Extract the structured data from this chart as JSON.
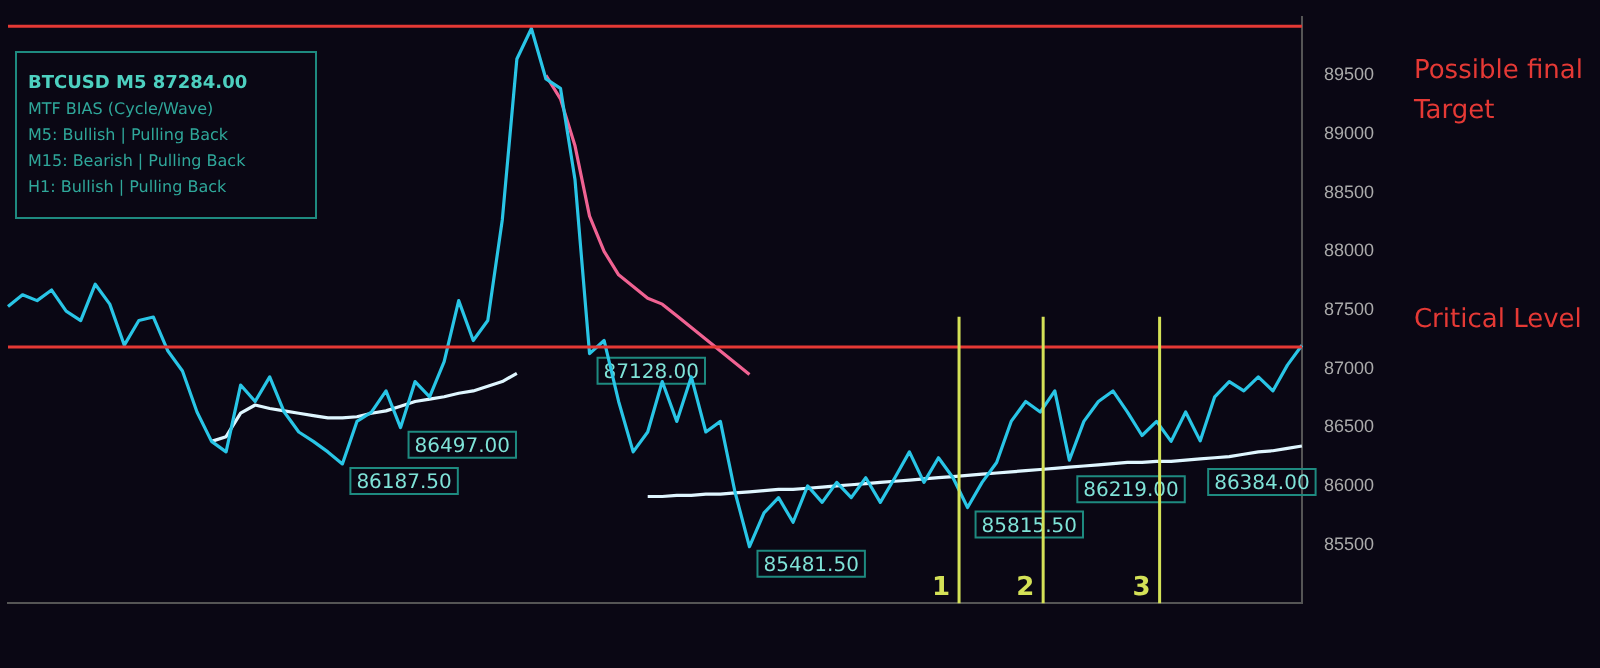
{
  "chart_data": {
    "type": "line",
    "grid": false,
    "legend": false,
    "ylim": [
      85000,
      90000
    ],
    "yticks": [
      85500,
      86000,
      86500,
      87000,
      87500,
      88000,
      88500,
      89000,
      89500
    ],
    "categories": [
      null,
      null,
      null,
      null,
      null,
      null,
      null,
      null,
      null,
      null,
      null,
      null,
      null,
      null,
      null,
      null,
      null,
      null,
      null,
      null,
      null,
      null,
      null,
      null,
      null,
      null,
      null,
      null,
      null,
      null,
      null,
      null,
      null,
      null,
      null,
      null,
      null,
      null,
      null,
      null,
      null,
      null,
      null,
      null,
      null,
      null,
      null,
      null,
      null,
      null,
      null,
      null,
      null,
      null,
      null,
      null,
      null,
      null,
      null,
      null,
      null,
      null,
      null,
      null,
      null,
      null,
      null,
      null,
      null,
      null,
      null,
      null,
      null,
      null,
      null,
      null,
      null,
      null,
      null,
      null,
      null,
      null,
      null,
      null,
      null,
      null,
      null,
      null,
      null,
      null
    ],
    "series": [
      {
        "color": "#29c5e6",
        "values": [
          87530,
          87630,
          87580,
          87670,
          87490,
          87410,
          87720,
          87550,
          87200,
          87410,
          87440,
          87150,
          86980,
          86630,
          86380,
          86290,
          86860,
          86720,
          86930,
          86630,
          86460,
          86380,
          86290,
          86187.5,
          86550,
          86630,
          86810,
          86497,
          86890,
          86760,
          87060,
          87580,
          87240,
          87410,
          88270,
          89640,
          89900,
          89470,
          89390,
          88610,
          87128,
          87240,
          86720,
          86290,
          86460,
          86890,
          86550,
          86930,
          86460,
          86550,
          85950,
          85481.5,
          85770,
          85900,
          85690,
          86000,
          85860,
          86030,
          85900,
          86070,
          85860,
          86070,
          86290,
          86030,
          86240,
          86070,
          85815.5,
          86030,
          86200,
          86550,
          86720,
          86630,
          86810,
          86219,
          86550,
          86720,
          86810,
          86630,
          86430,
          86550,
          86380,
          86630,
          86384,
          86760,
          86890,
          86810,
          86930,
          86810,
          87030,
          87200
        ],
        "value_labels": [
          null,
          null,
          null,
          null,
          null,
          null,
          null,
          null,
          null,
          null,
          null,
          null,
          null,
          null,
          null,
          null,
          null,
          null,
          null,
          null,
          null,
          null,
          null,
          "86187.50",
          null,
          null,
          null,
          "86497.00",
          null,
          null,
          null,
          null,
          null,
          null,
          null,
          null,
          null,
          null,
          null,
          null,
          "87128.00",
          null,
          null,
          null,
          null,
          null,
          null,
          null,
          null,
          null,
          null,
          "85481.50",
          null,
          null,
          null,
          null,
          null,
          null,
          null,
          null,
          null,
          null,
          null,
          null,
          null,
          null,
          "85815.50",
          null,
          null,
          null,
          null,
          null,
          null,
          "86219.00",
          null,
          null,
          null,
          null,
          null,
          null,
          null,
          null,
          "86384.00",
          null,
          null,
          null,
          null,
          null,
          null,
          null
        ]
      },
      {
        "color": "#dff6ff",
        "values": [
          null,
          null,
          null,
          null,
          null,
          null,
          null,
          null,
          null,
          null,
          null,
          null,
          null,
          null,
          86380,
          86420,
          86620,
          86690,
          86660,
          86640,
          86620,
          86600,
          86580,
          86580,
          86590,
          86620,
          86640,
          86680,
          86720,
          86740,
          86760,
          86790,
          86810,
          86850,
          86890,
          86960,
          null,
          null,
          null,
          null,
          null,
          null,
          null,
          null,
          85910,
          85910,
          85920,
          85920,
          85930,
          85930,
          85940,
          85950,
          85960,
          85970,
          85970,
          85980,
          85990,
          86000,
          86010,
          86020,
          86030,
          86040,
          86050,
          86060,
          86070,
          86080,
          86090,
          86100,
          86110,
          86120,
          86130,
          86140,
          86150,
          86160,
          86170,
          86180,
          86190,
          86200,
          86200,
          86210,
          86210,
          86220,
          86230,
          86240,
          86250,
          86270,
          86290,
          86300,
          86320,
          86340
        ]
      },
      {
        "color": "#f06292",
        "values": [
          null,
          null,
          null,
          null,
          null,
          null,
          null,
          null,
          null,
          null,
          null,
          null,
          null,
          null,
          null,
          null,
          null,
          null,
          null,
          null,
          null,
          null,
          null,
          null,
          null,
          null,
          null,
          null,
          null,
          null,
          null,
          null,
          null,
          null,
          null,
          null,
          null,
          89500,
          89300,
          88900,
          88300,
          88000,
          87800,
          87700,
          87600,
          87550,
          87450,
          87350,
          87250,
          87150,
          87050,
          86950,
          null,
          null,
          null,
          null,
          null,
          null,
          null,
          null,
          null,
          null,
          null,
          null,
          null,
          null,
          null,
          null,
          null,
          null,
          null,
          null,
          null,
          null,
          null,
          null,
          null,
          null,
          null,
          null,
          null,
          null,
          null,
          null,
          null,
          null,
          null,
          null,
          null,
          null
        ]
      }
    ],
    "ref_lines": [
      {
        "axis": "y",
        "value": 89920,
        "label": "Possible final Target",
        "color": "#e53935"
      },
      {
        "axis": "y",
        "value": 87185,
        "label": "Critical Level",
        "color": "#e53935"
      }
    ],
    "annotations": [
      "BTCUSD M5 87284.00",
      "MTF BIAS (Cycle/Wave)",
      "M5: Bullish | Pulling Back",
      "M15: Bearish | Pulling Back",
      "H1: Bullish | Pulling Back",
      "1",
      "2",
      "3"
    ]
  }
}
